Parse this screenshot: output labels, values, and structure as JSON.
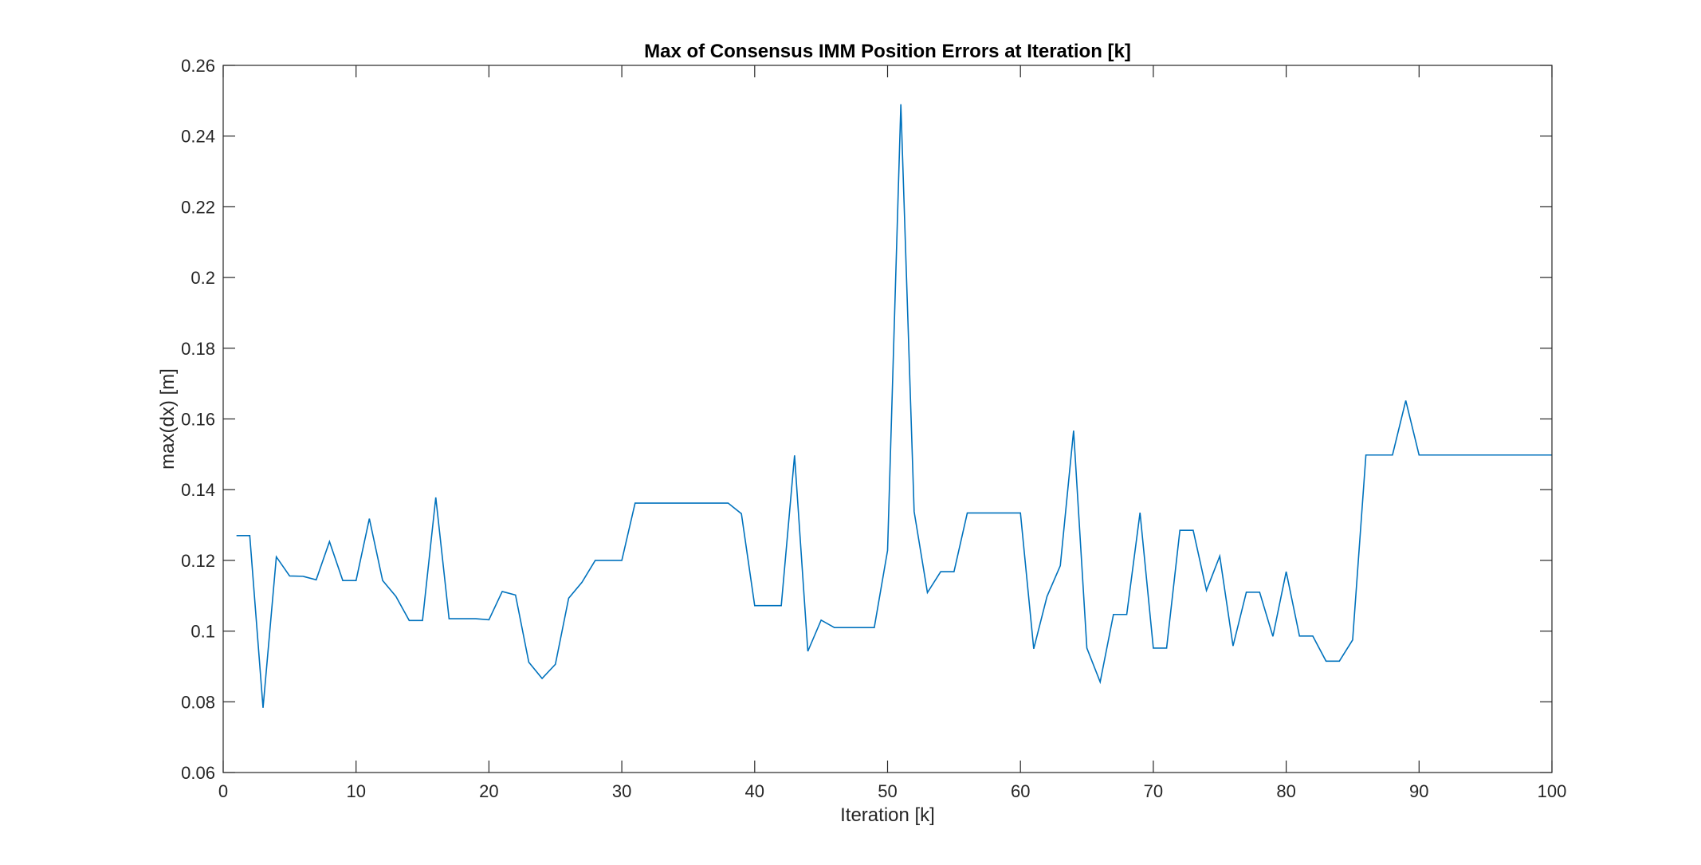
{
  "chart_data": {
    "type": "line",
    "title": "Max of Consensus IMM Position Errors at Iteration [k]",
    "xlabel": "Iteration [k]",
    "ylabel": "max(dx) [m]",
    "xlim": [
      0,
      100
    ],
    "ylim": [
      0.06,
      0.26
    ],
    "xticks": [
      0,
      10,
      20,
      30,
      40,
      50,
      60,
      70,
      80,
      90,
      100
    ],
    "xtick_labels": [
      "0",
      "10",
      "20",
      "30",
      "40",
      "50",
      "60",
      "70",
      "80",
      "90",
      "100"
    ],
    "yticks": [
      0.06,
      0.08,
      0.1,
      0.12,
      0.14,
      0.16,
      0.18,
      0.2,
      0.22,
      0.24,
      0.26
    ],
    "ytick_labels": [
      "0.06",
      "0.08",
      "0.1",
      "0.12",
      "0.14",
      "0.16",
      "0.18",
      "0.2",
      "0.22",
      "0.24",
      "0.26"
    ],
    "grid": false,
    "series_color": "#0072BD",
    "x": [
      1,
      2,
      3,
      4,
      5,
      6,
      7,
      8,
      9,
      10,
      11,
      12,
      13,
      14,
      15,
      16,
      17,
      18,
      19,
      20,
      21,
      22,
      23,
      24,
      25,
      26,
      27,
      28,
      29,
      30,
      31,
      32,
      33,
      34,
      35,
      36,
      37,
      38,
      39,
      40,
      41,
      42,
      43,
      44,
      45,
      46,
      47,
      48,
      49,
      50,
      51,
      52,
      53,
      54,
      55,
      56,
      57,
      58,
      59,
      60,
      61,
      62,
      63,
      64,
      65,
      66,
      67,
      68,
      69,
      70,
      71,
      72,
      73,
      74,
      75,
      76,
      77,
      78,
      79,
      80,
      81,
      82,
      83,
      84,
      85,
      86,
      87,
      88,
      89,
      90,
      91,
      92,
      93,
      94,
      95,
      96,
      97,
      98,
      99,
      100
    ],
    "values": [
      0.127,
      0.127,
      0.0783,
      0.121,
      0.1156,
      0.1155,
      0.1145,
      0.1253,
      0.1143,
      0.1143,
      0.1318,
      0.1143,
      0.1098,
      0.103,
      0.103,
      0.1378,
      0.1035,
      0.1035,
      0.1035,
      0.1032,
      0.1112,
      0.1102,
      0.0912,
      0.0866,
      0.0906,
      0.1093,
      0.1138,
      0.12,
      0.12,
      0.12,
      0.1362,
      0.1362,
      0.1362,
      0.1362,
      0.1362,
      0.1362,
      0.1362,
      0.1362,
      0.1332,
      0.1072,
      0.1072,
      0.1072,
      0.1497,
      0.0943,
      0.1031,
      0.101,
      0.101,
      0.101,
      0.101,
      0.1228,
      0.249,
      0.1338,
      0.1109,
      0.1168,
      0.1168,
      0.1334,
      0.1334,
      0.1334,
      0.1334,
      0.1334,
      0.095,
      0.1098,
      0.1185,
      0.1567,
      0.0952,
      0.0856,
      0.1047,
      0.1047,
      0.1335,
      0.0952,
      0.0952,
      0.1285,
      0.1285,
      0.1115,
      0.1212,
      0.0958,
      0.111,
      0.111,
      0.0985,
      0.1168,
      0.0986,
      0.0986,
      0.0915,
      0.0915,
      0.0975,
      0.1498,
      0.1498,
      0.1498,
      0.1652,
      0.1498,
      0.1498,
      0.1498,
      0.1498,
      0.1498,
      0.1498,
      0.1498,
      0.1498,
      0.1498,
      0.1498,
      0.1498
    ]
  }
}
